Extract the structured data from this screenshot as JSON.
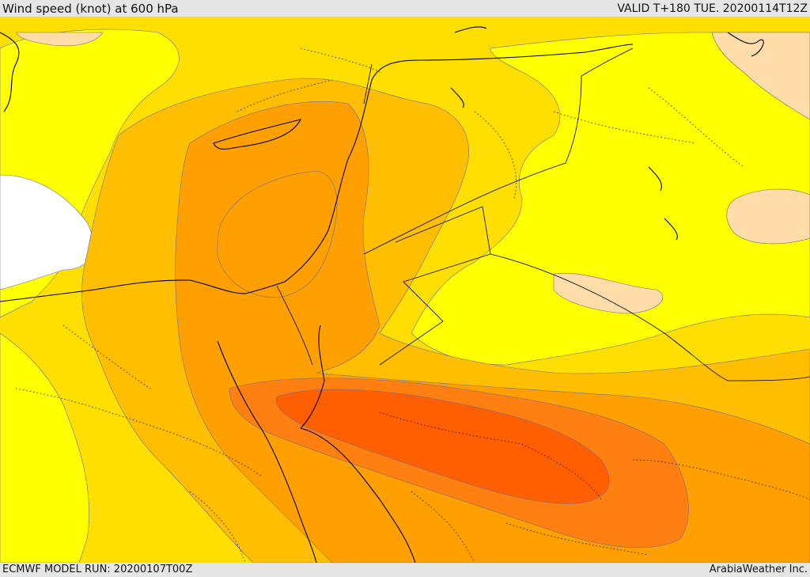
{
  "header": {
    "title": "Wind speed (knot) at 600 hPa",
    "valid": "VALID T+180 TUE. 20200114T12Z"
  },
  "footer": {
    "model_run": "ECMWF MODEL RUN: 20200107T00Z",
    "credit": "ArabiaWeather Inc."
  },
  "palette": {
    "white": "#ffffff",
    "light": "#ffdca8",
    "yellow": "#ffff00",
    "yellow_orange": "#ffdf00",
    "gold": "#ffbf00",
    "orange": "#ff9f00",
    "dark_orange": "#ff7f10",
    "red_orange": "#ff5f00",
    "contour": "#6e6e8e",
    "coast": "#000000"
  },
  "map": {
    "field": "Wind speed (knot)",
    "level": "600 hPa"
  }
}
